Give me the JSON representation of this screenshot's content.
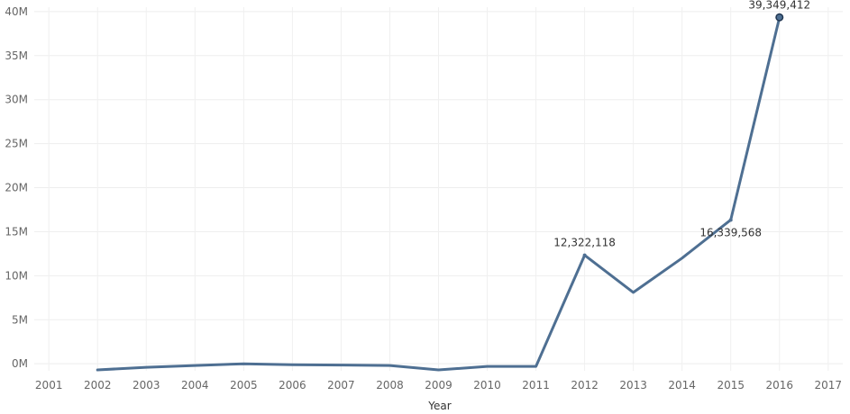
{
  "chart_data": {
    "type": "line",
    "xlabel": "Year",
    "ylabel": "",
    "x": [
      2002,
      2003,
      2004,
      2005,
      2006,
      2007,
      2008,
      2009,
      2010,
      2011,
      2012,
      2013,
      2014,
      2015,
      2016
    ],
    "series": [
      {
        "values": [
          -700000,
          -400000,
          -200000,
          0,
          -100000,
          -150000,
          -200000,
          -700000,
          -300000,
          -300000,
          12322118,
          8100000,
          12000000,
          16339568,
          39349412
        ]
      }
    ],
    "x_ticks": [
      "2001",
      "2002",
      "2003",
      "2004",
      "2005",
      "2006",
      "2007",
      "2008",
      "2009",
      "2010",
      "2011",
      "2012",
      "2013",
      "2014",
      "2015",
      "2016",
      "2017"
    ],
    "y_ticks": [
      "0M",
      "5M",
      "10M",
      "15M",
      "20M",
      "25M",
      "30M",
      "35M",
      "40M"
    ],
    "xlim": [
      2000.7,
      2017.3
    ],
    "ylim": [
      -800000,
      40500000
    ],
    "grid": true,
    "line_color": "#4e6f92",
    "marker_color": "#1f3550",
    "annotations": [
      {
        "x": 2012,
        "y": 12322118,
        "text": "12,322,118",
        "position": "above"
      },
      {
        "x": 2015,
        "y": 16339568,
        "text": "16,339,568",
        "position": "below"
      },
      {
        "x": 2016,
        "y": 39349412,
        "text": "39,349,412",
        "position": "above",
        "marker": true
      }
    ]
  }
}
